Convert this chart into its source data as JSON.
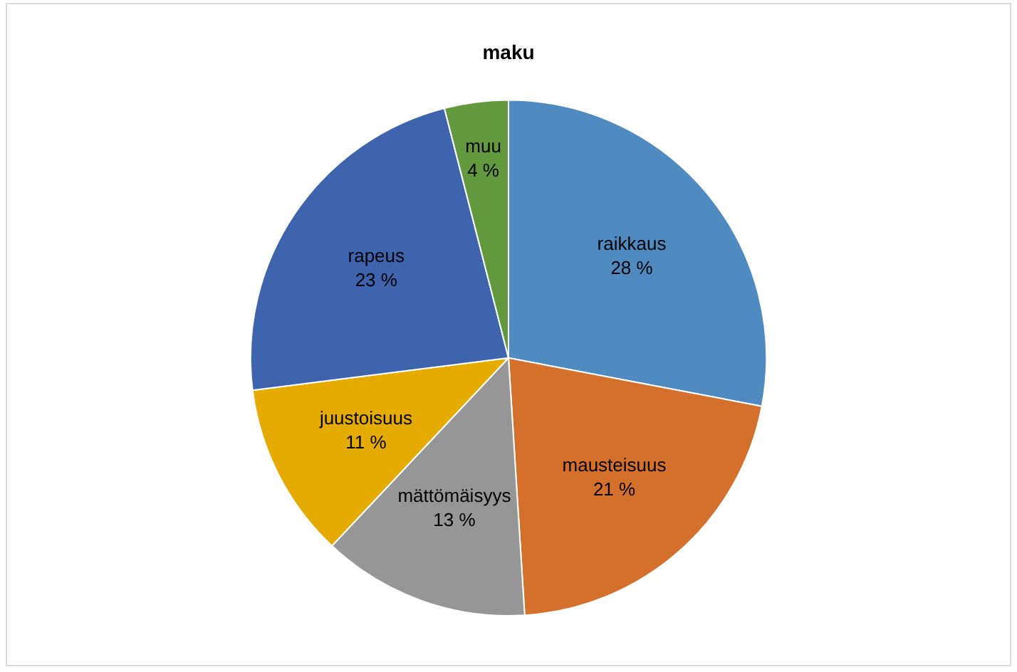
{
  "chart_data": {
    "type": "pie",
    "title": "maku",
    "categories": [
      "raikkaus",
      "mausteisuus",
      "mättömäisyys",
      "juustoisuus",
      "rapeus",
      "muu"
    ],
    "values": [
      28,
      21,
      13,
      11,
      23,
      4
    ],
    "colors": [
      "#4f8bc0",
      "#d4702c",
      "#969696",
      "#e5ab00",
      "#3d64ad",
      "#62993e"
    ],
    "value_labels": [
      "28 %",
      "21 %",
      "13 %",
      "11 %",
      "23 %",
      "4 %"
    ],
    "legend": false
  }
}
